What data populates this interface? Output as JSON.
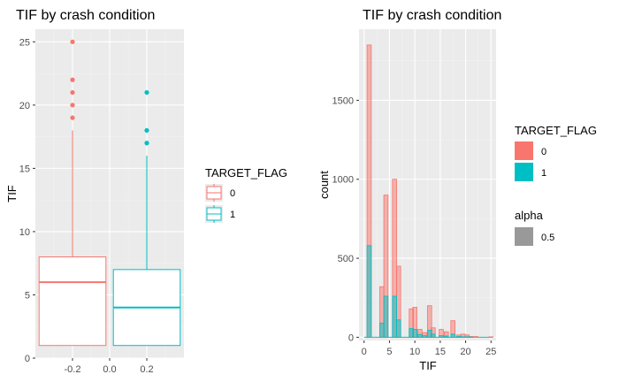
{
  "charts": [
    {
      "title": "TIF by crash condition",
      "xlabel": "",
      "ylabel": "TIF",
      "legend": {
        "title": "TARGET_FLAG",
        "items": [
          {
            "label": "0",
            "color": "#F8766D"
          },
          {
            "label": "1",
            "color": "#00BFC4"
          }
        ]
      }
    },
    {
      "title": "TIF by crash condition",
      "xlabel": "TIF",
      "ylabel": "count",
      "legend": {
        "title": "TARGET_FLAG",
        "items": [
          {
            "label": "0",
            "color": "#F8766D"
          },
          {
            "label": "1",
            "color": "#00BFC4"
          }
        ]
      },
      "legend2": {
        "title": "alpha",
        "items": [
          {
            "label": "0.5",
            "color": "#999999"
          }
        ]
      }
    }
  ],
  "chart_data": [
    {
      "type": "box",
      "title": "TIF by crash condition",
      "ylabel": "TIF",
      "xlim": [
        -0.4,
        0.4
      ],
      "ylim": [
        0,
        26
      ],
      "x_ticks": [
        "-0.2",
        "0.0",
        "0.2"
      ],
      "y_ticks": [
        "0",
        "5",
        "10",
        "15",
        "20",
        "25"
      ],
      "grid": true,
      "legend_position": "right",
      "boxes": [
        {
          "group": "0",
          "x": -0.2,
          "min": 1,
          "q1": 1,
          "median": 6,
          "q3": 8,
          "max": 18,
          "outliers": [
            19,
            20,
            21,
            22,
            25
          ],
          "color": "#F8766D"
        },
        {
          "group": "1",
          "x": 0.2,
          "min": 1,
          "q1": 1,
          "median": 4,
          "q3": 7,
          "max": 16,
          "outliers": [
            17,
            18,
            21
          ],
          "color": "#00BFC4"
        }
      ]
    },
    {
      "type": "histogram",
      "title": "TIF by crash condition",
      "xlabel": "TIF",
      "ylabel": "count",
      "xlim": [
        -1,
        26
      ],
      "ylim": [
        -20,
        1950
      ],
      "x_ticks": [
        "0",
        "5",
        "10",
        "15",
        "20",
        "25"
      ],
      "y_ticks": [
        "0",
        "500",
        "1000",
        "1500"
      ],
      "grid": true,
      "legend_position": "right",
      "bin_width": 0.83,
      "series": [
        {
          "name": "0",
          "color": "#F8766D",
          "bins": [
            {
              "x": 1,
              "count": 1850
            },
            {
              "x": 3.5,
              "count": 320
            },
            {
              "x": 4.3,
              "count": 900
            },
            {
              "x": 6,
              "count": 1000
            },
            {
              "x": 6.8,
              "count": 450
            },
            {
              "x": 9.3,
              "count": 180
            },
            {
              "x": 10,
              "count": 190
            },
            {
              "x": 11,
              "count": 50
            },
            {
              "x": 11.9,
              "count": 30
            },
            {
              "x": 12.9,
              "count": 200
            },
            {
              "x": 13.6,
              "count": 60
            },
            {
              "x": 15.2,
              "count": 50
            },
            {
              "x": 16.2,
              "count": 35
            },
            {
              "x": 17.5,
              "count": 105
            },
            {
              "x": 18.6,
              "count": 15
            },
            {
              "x": 19.5,
              "count": 20
            },
            {
              "x": 20.3,
              "count": 15
            },
            {
              "x": 21,
              "count": 5
            },
            {
              "x": 22,
              "count": 5
            },
            {
              "x": 25,
              "count": 3
            }
          ]
        },
        {
          "name": "1",
          "color": "#00BFC4",
          "bins": [
            {
              "x": 1,
              "count": 580
            },
            {
              "x": 3.5,
              "count": 90
            },
            {
              "x": 4.3,
              "count": 260
            },
            {
              "x": 6,
              "count": 260
            },
            {
              "x": 6.8,
              "count": 110
            },
            {
              "x": 9.3,
              "count": 55
            },
            {
              "x": 10,
              "count": 50
            },
            {
              "x": 11,
              "count": 18
            },
            {
              "x": 11.9,
              "count": 10
            },
            {
              "x": 12.9,
              "count": 45
            },
            {
              "x": 13.6,
              "count": 20
            },
            {
              "x": 15.2,
              "count": 10
            },
            {
              "x": 16.2,
              "count": 8
            },
            {
              "x": 17.5,
              "count": 20
            },
            {
              "x": 18.6,
              "count": 5
            },
            {
              "x": 19.5,
              "count": 3
            },
            {
              "x": 20.3,
              "count": 3
            },
            {
              "x": 21,
              "count": 2
            }
          ]
        }
      ]
    }
  ]
}
